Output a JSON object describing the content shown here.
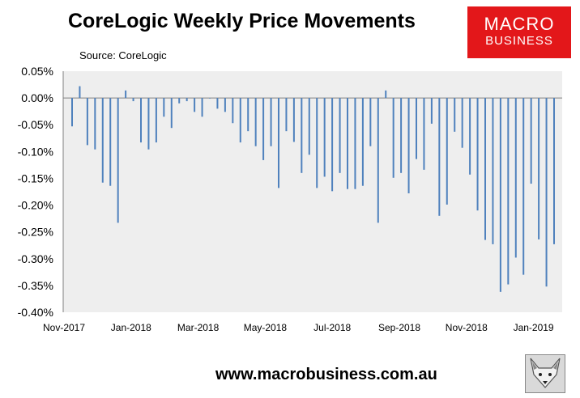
{
  "header": {
    "title": "CoreLogic Weekly Price Movements",
    "source": "Source: CoreLogic"
  },
  "logo": {
    "line1": "MACRO",
    "line2": "BUSINESS"
  },
  "footer": {
    "url": "www.macrobusiness.com.au"
  },
  "chart_data": {
    "type": "bar",
    "title": "CoreLogic Weekly Price Movements",
    "xlabel": "",
    "ylabel": "",
    "ylim": [
      -0.4,
      0.05
    ],
    "yticks": [
      "0.05%",
      "0.00%",
      "-0.05%",
      "-0.10%",
      "-0.15%",
      "-0.20%",
      "-0.25%",
      "-0.30%",
      "-0.35%",
      "-0.40%"
    ],
    "xticks": [
      "Nov-2017",
      "Jan-2018",
      "Mar-2018",
      "May-2018",
      "Jul-2018",
      "Sep-2018",
      "Nov-2018",
      "Jan-2019"
    ],
    "grid": false,
    "bar_color": "#4f81bd",
    "plot_background": "#eeeeee",
    "values": [
      -0.053,
      0.022,
      -0.088,
      -0.096,
      -0.158,
      -0.164,
      -0.233,
      0.014,
      -0.006,
      -0.083,
      -0.096,
      -0.083,
      -0.035,
      -0.056,
      -0.01,
      -0.006,
      -0.026,
      -0.035,
      -0.001,
      -0.02,
      -0.026,
      -0.047,
      -0.083,
      -0.062,
      -0.09,
      -0.116,
      -0.09,
      -0.168,
      -0.062,
      -0.082,
      -0.14,
      -0.106,
      -0.168,
      -0.147,
      -0.174,
      -0.14,
      -0.17,
      -0.17,
      -0.164,
      -0.09,
      -0.233,
      0.014,
      -0.149,
      -0.14,
      -0.178,
      -0.114,
      -0.134,
      -0.048,
      -0.22,
      -0.199,
      -0.063,
      -0.093,
      -0.143,
      -0.21,
      -0.265,
      -0.273,
      -0.362,
      -0.348,
      -0.298,
      -0.33,
      -0.16,
      -0.264,
      -0.352,
      -0.273
    ]
  }
}
